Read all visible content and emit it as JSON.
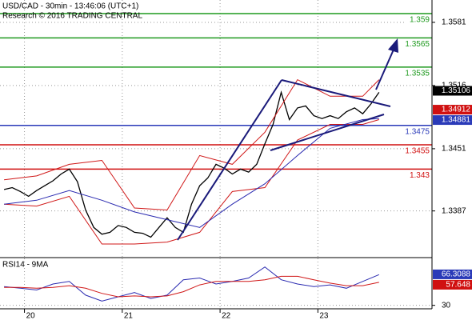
{
  "chart_data": [
    {
      "type": "line",
      "title": "USD/CAD - 30min - 13:46:06 (UTC+1)",
      "subtitle": "Research © 2016 TRADING CENTRAL",
      "xlim": [
        -6,
        100
      ],
      "xticks": [
        {
          "value": 0,
          "label": "20"
        },
        {
          "value": 24,
          "label": "21"
        },
        {
          "value": 48,
          "label": "22"
        },
        {
          "value": 72,
          "label": "23"
        }
      ],
      "ylim": [
        1.3339,
        1.3604
      ],
      "yticks": [
        1.3387,
        1.3451,
        1.3516,
        1.3581
      ],
      "grid": true,
      "series": [
        {
          "color": "#000000",
          "x": [
            -5,
            -3,
            -1,
            1,
            3,
            5,
            7,
            9,
            11,
            13,
            15,
            17,
            19,
            21,
            23,
            25,
            27,
            29,
            31,
            33,
            35,
            37,
            39,
            41,
            43,
            45,
            47,
            49,
            51,
            53,
            55,
            57,
            59,
            61,
            63,
            65,
            67,
            69,
            71,
            73,
            75,
            77,
            79,
            81,
            83,
            85,
            87
          ],
          "values": [
            1.3409,
            1.3411,
            1.3407,
            1.3402,
            1.3408,
            1.3413,
            1.3418,
            1.3425,
            1.343,
            1.3417,
            1.3388,
            1.337,
            1.3363,
            1.3365,
            1.3372,
            1.337,
            1.3365,
            1.3364,
            1.336,
            1.337,
            1.338,
            1.337,
            1.3365,
            1.3394,
            1.3413,
            1.3421,
            1.3435,
            1.3431,
            1.3425,
            1.343,
            1.3427,
            1.3435,
            1.3456,
            1.3476,
            1.3509,
            1.3481,
            1.3493,
            1.3495,
            1.3485,
            1.3482,
            1.3485,
            1.3482,
            1.3489,
            1.3493,
            1.3487,
            1.3497,
            1.3509
          ]
        },
        {
          "color": "#d01818",
          "x": [
            -5,
            3,
            11,
            19,
            27,
            35,
            43,
            51,
            59,
            67,
            75,
            83,
            87
          ],
          "values": [
            1.3419,
            1.3423,
            1.3435,
            1.3439,
            1.339,
            1.3388,
            1.3444,
            1.3435,
            1.3468,
            1.3522,
            1.3505,
            1.3505,
            1.3522
          ]
        },
        {
          "color": "#d01818",
          "x": [
            -5,
            3,
            11,
            19,
            27,
            35,
            43,
            51,
            59,
            67,
            75,
            83,
            87
          ],
          "values": [
            1.3394,
            1.3392,
            1.3402,
            1.3353,
            1.3353,
            1.3355,
            1.3365,
            1.3407,
            1.3411,
            1.346,
            1.3476,
            1.3476,
            1.3481
          ]
        },
        {
          "color": "#2a2ab0",
          "x": [
            -5,
            3,
            11,
            19,
            27,
            35,
            43,
            51,
            59,
            67,
            75,
            83,
            87
          ],
          "values": [
            1.3394,
            1.3398,
            1.3408,
            1.3398,
            1.3386,
            1.3378,
            1.337,
            1.3394,
            1.3415,
            1.3444,
            1.3472,
            1.3481,
            1.3482
          ]
        }
      ],
      "levels": [
        {
          "value": 1.359,
          "color": "#1f9a1f"
        },
        {
          "value": 1.3565,
          "color": "#1f9a1f"
        },
        {
          "value": 1.3535,
          "color": "#1f9a1f"
        },
        {
          "value": 1.3475,
          "color": "#2a3ab8"
        },
        {
          "value": 1.3455,
          "color": "#d01010"
        },
        {
          "value": 1.343,
          "color": "#d01010"
        }
      ],
      "price_flags": [
        {
          "value": 1.35106,
          "color": "#000000"
        },
        {
          "value": 1.34912,
          "color": "#d01010"
        },
        {
          "value": 1.34881,
          "color": "#2a3ab8"
        }
      ]
    },
    {
      "type": "line",
      "title": "RSI14 - 9MA",
      "xlim": [
        -6,
        100
      ],
      "ylim": [
        25,
        85
      ],
      "yticks": [
        30
      ],
      "series": [
        {
          "color": "#2a2ab0",
          "x": [
            -5,
            -1,
            3,
            7,
            11,
            15,
            19,
            23,
            27,
            31,
            35,
            39,
            43,
            47,
            51,
            55,
            59,
            63,
            67,
            71,
            75,
            79,
            83,
            87
          ],
          "values": [
            52,
            50,
            48,
            55,
            58,
            42,
            35,
            40,
            45,
            38,
            42,
            60,
            62,
            55,
            58,
            62,
            75,
            60,
            55,
            52,
            54,
            50,
            58,
            66
          ]
        },
        {
          "color": "#d01818",
          "x": [
            -5,
            -1,
            3,
            7,
            11,
            15,
            19,
            23,
            27,
            31,
            35,
            39,
            43,
            47,
            51,
            55,
            59,
            63,
            67,
            71,
            75,
            79,
            83,
            87
          ],
          "values": [
            51,
            51,
            50,
            51,
            53,
            50,
            44,
            40,
            41,
            40,
            41,
            46,
            54,
            58,
            58,
            58,
            60,
            64,
            64,
            60,
            56,
            53,
            53,
            57
          ]
        }
      ],
      "price_flags": [
        {
          "value": 66.3088,
          "color": "#2a3ab8"
        },
        {
          "value": 57.648,
          "color": "#d01010"
        }
      ]
    }
  ]
}
